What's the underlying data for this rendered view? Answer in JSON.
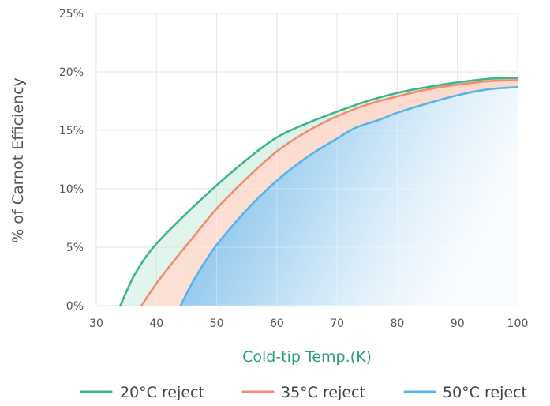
{
  "chart_data": {
    "type": "area",
    "xlabel": "Cold-tip Temp.(K)",
    "ylabel": "% of Carnot Efficiency",
    "xlim": [
      30,
      100
    ],
    "ylim": [
      0,
      25
    ],
    "x_ticks": [
      "30",
      "40",
      "50",
      "60",
      "70",
      "80",
      "90",
      "100"
    ],
    "y_ticks": [
      "0%",
      "5%",
      "10%",
      "15%",
      "20%",
      "25%"
    ],
    "grid": true,
    "legend_position": "bottom",
    "series": [
      {
        "name": "20°C reject",
        "color": "#3db58a",
        "x": [
          34,
          36,
          38,
          40,
          43,
          46,
          50,
          55,
          60,
          65,
          70,
          75,
          80,
          85,
          90,
          95,
          100
        ],
        "y": [
          0,
          2.3,
          4.0,
          5.3,
          6.9,
          8.4,
          10.3,
          12.5,
          14.4,
          15.6,
          16.6,
          17.5,
          18.2,
          18.7,
          19.1,
          19.4,
          19.5
        ]
      },
      {
        "name": "35°C reject",
        "color": "#f28e6d",
        "x": [
          37.5,
          40,
          43,
          46,
          50,
          55,
          60,
          65,
          70,
          75,
          80,
          85,
          90,
          95,
          100
        ],
        "y": [
          0,
          1.9,
          3.9,
          5.8,
          8.3,
          10.9,
          13.2,
          14.9,
          16.2,
          17.2,
          17.9,
          18.5,
          18.9,
          19.2,
          19.3
        ]
      },
      {
        "name": "50°C reject",
        "color": "#55b4e8",
        "x": [
          44,
          46,
          48,
          50,
          55,
          60,
          65,
          70,
          73,
          77,
          80,
          85,
          90,
          95,
          100
        ],
        "y": [
          0,
          2.0,
          3.7,
          5.2,
          8.2,
          10.7,
          12.7,
          14.3,
          15.2,
          15.9,
          16.5,
          17.3,
          18.0,
          18.5,
          18.7
        ]
      }
    ],
    "fills": [
      {
        "between": [
          "20°C reject",
          "35°C reject"
        ],
        "color": "#3db58a",
        "opacity": 0.14
      },
      {
        "between": [
          "35°C reject",
          "50°C reject"
        ],
        "color": "#f28e6d",
        "opacity": 0.26
      },
      {
        "below": "50°C reject",
        "color": "#4aa3e0",
        "gradient": "left-to-right fade"
      }
    ],
    "colors": {
      "grid": "#d9d9d9",
      "tick_text": "#555555",
      "x_title": "#2f9c78",
      "y_title": "#555555"
    }
  }
}
